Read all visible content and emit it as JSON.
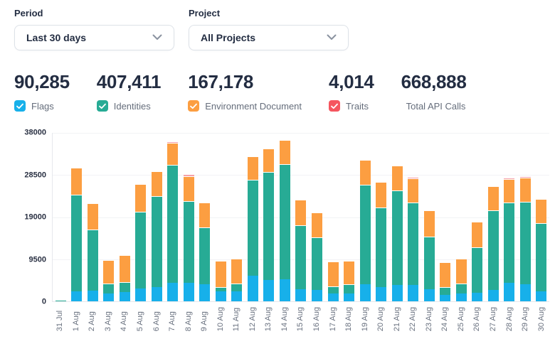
{
  "filters": {
    "period": {
      "label": "Period",
      "value": "Last 30 days"
    },
    "project": {
      "label": "Project",
      "value": "All Projects"
    }
  },
  "stats": [
    {
      "value": "90,285",
      "label": "Flags",
      "checkbox_color": "#17b0ea",
      "checked": true
    },
    {
      "value": "407,411",
      "label": "Identities",
      "checkbox_color": "#27ab95",
      "checked": true
    },
    {
      "value": "167,178",
      "label": "Environment Document",
      "checkbox_color": "#fc9e41",
      "checked": true
    },
    {
      "value": "4,014",
      "label": "Traits",
      "checkbox_color": "#f5565f",
      "checked": true
    },
    {
      "value": "668,888",
      "label": "Total API Calls",
      "checkbox_color": null,
      "checked": null
    }
  ],
  "chart_data": {
    "type": "bar",
    "stacked": true,
    "grid": true,
    "ylim": [
      0,
      38000
    ],
    "y_ticks": [
      0,
      9500,
      19000,
      28500,
      38000
    ],
    "categories": [
      "31 Jul",
      "1 Aug",
      "2 Aug",
      "3 Aug",
      "4 Aug",
      "5 Aug",
      "6 Aug",
      "7 Aug",
      "8 Aug",
      "9 Aug",
      "10 Aug",
      "11 Aug",
      "12 Aug",
      "13 Aug",
      "14 Aug",
      "15 Aug",
      "16 Aug",
      "17 Aug",
      "18 Aug",
      "19 Aug",
      "20 Aug",
      "21 Aug",
      "22 Aug",
      "23 Aug",
      "24 Aug",
      "25 Aug",
      "26 Aug",
      "27 Aug",
      "28 Aug",
      "29 Aug",
      "30 Aug"
    ],
    "series": [
      {
        "name": "Flags",
        "color": "#17b0ea",
        "values": [
          0,
          2300,
          2450,
          1700,
          2100,
          2900,
          3150,
          4100,
          4100,
          3800,
          2200,
          2300,
          5800,
          4800,
          4900,
          2700,
          2600,
          1700,
          1800,
          3800,
          3150,
          3700,
          3700,
          2800,
          1450,
          1700,
          2000,
          2500,
          4100,
          3850,
          2250
        ]
      },
      {
        "name": "Identities",
        "color": "#27ab95",
        "values": [
          200,
          21500,
          13500,
          2100,
          2100,
          17100,
          20300,
          26400,
          18300,
          12600,
          800,
          1500,
          21300,
          24100,
          25700,
          14300,
          11600,
          1450,
          1800,
          22300,
          17750,
          21100,
          18400,
          11550,
          1550,
          2100,
          9950,
          17700,
          17900,
          18300,
          15200
        ]
      },
      {
        "name": "Environment Document",
        "color": "#fc9e41",
        "values": [
          0,
          6000,
          5900,
          5230,
          6010,
          6130,
          5620,
          5000,
          5600,
          5700,
          5900,
          5700,
          5350,
          5250,
          5500,
          5700,
          5600,
          5650,
          5270,
          5450,
          5700,
          5550,
          5450,
          5920,
          5640,
          5640,
          5850,
          5500,
          5300,
          5550,
          5430
        ]
      },
      {
        "name": "Traits",
        "color": "#f6a0a8",
        "values": [
          0,
          60,
          60,
          60,
          60,
          60,
          60,
          250,
          350,
          150,
          60,
          60,
          150,
          250,
          150,
          60,
          200,
          60,
          60,
          250,
          60,
          100,
          250,
          60,
          60,
          60,
          150,
          100,
          400,
          200,
          60
        ]
      }
    ]
  }
}
